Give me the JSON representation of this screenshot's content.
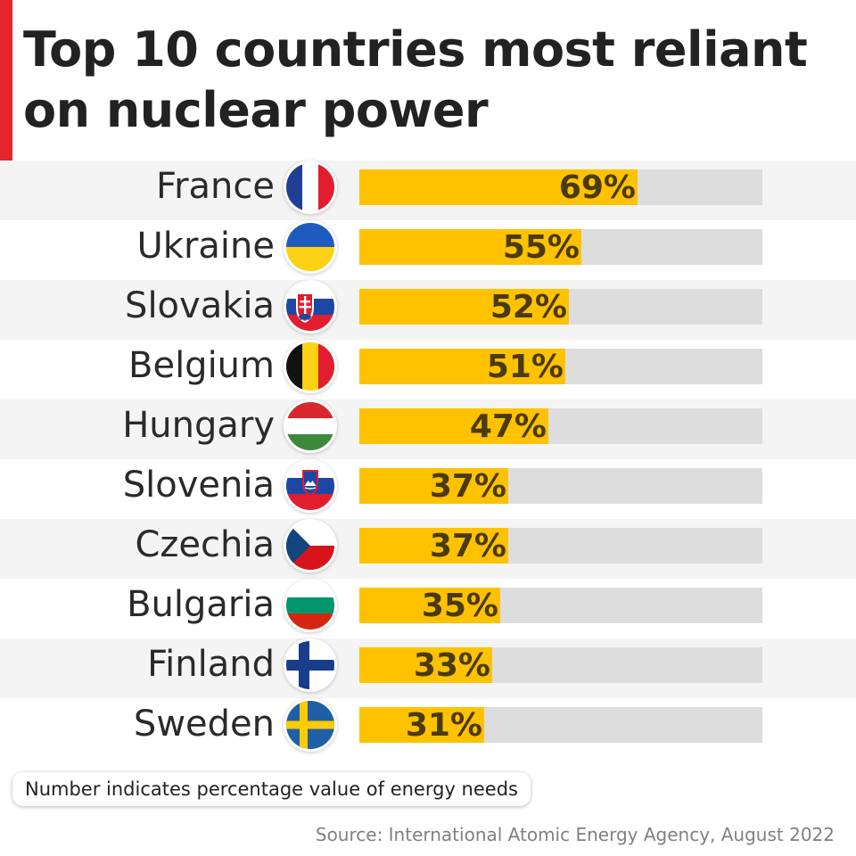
{
  "title": "Top 10 countries most reliant on nuclear power",
  "chart_data": {
    "type": "bar",
    "orientation": "horizontal",
    "title": "Top 10 countries most reliant on nuclear power",
    "categories": [
      "France",
      "Ukraine",
      "Slovakia",
      "Belgium",
      "Hungary",
      "Slovenia",
      "Czechia",
      "Bulgaria",
      "Finland",
      "Sweden"
    ],
    "values": [
      69,
      55,
      52,
      51,
      47,
      37,
      37,
      35,
      33,
      31
    ],
    "value_labels": [
      "69%",
      "55%",
      "52%",
      "51%",
      "47%",
      "37%",
      "37%",
      "35%",
      "33%",
      "31%"
    ],
    "xlim": [
      0,
      100
    ],
    "unit": "%",
    "xlabel": "",
    "ylabel": ""
  },
  "flags": [
    {
      "country": "France",
      "icon": "france-flag-icon"
    },
    {
      "country": "Ukraine",
      "icon": "ukraine-flag-icon"
    },
    {
      "country": "Slovakia",
      "icon": "slovakia-flag-icon"
    },
    {
      "country": "Belgium",
      "icon": "belgium-flag-icon"
    },
    {
      "country": "Hungary",
      "icon": "hungary-flag-icon"
    },
    {
      "country": "Slovenia",
      "icon": "slovenia-flag-icon"
    },
    {
      "country": "Czechia",
      "icon": "czechia-flag-icon"
    },
    {
      "country": "Bulgaria",
      "icon": "bulgaria-flag-icon"
    },
    {
      "country": "Finland",
      "icon": "finland-flag-icon"
    },
    {
      "country": "Sweden",
      "icon": "sweden-flag-icon"
    }
  ],
  "colors": {
    "accent": "#e3262b",
    "bar_fill": "#fec200",
    "bar_track": "#dddddd",
    "row_alt": "#f4f4f4",
    "value_text": "#4a3a10"
  },
  "note": "Number indicates percentage value of energy needs",
  "source": "Source: International Atomic Energy Agency, August 2022"
}
